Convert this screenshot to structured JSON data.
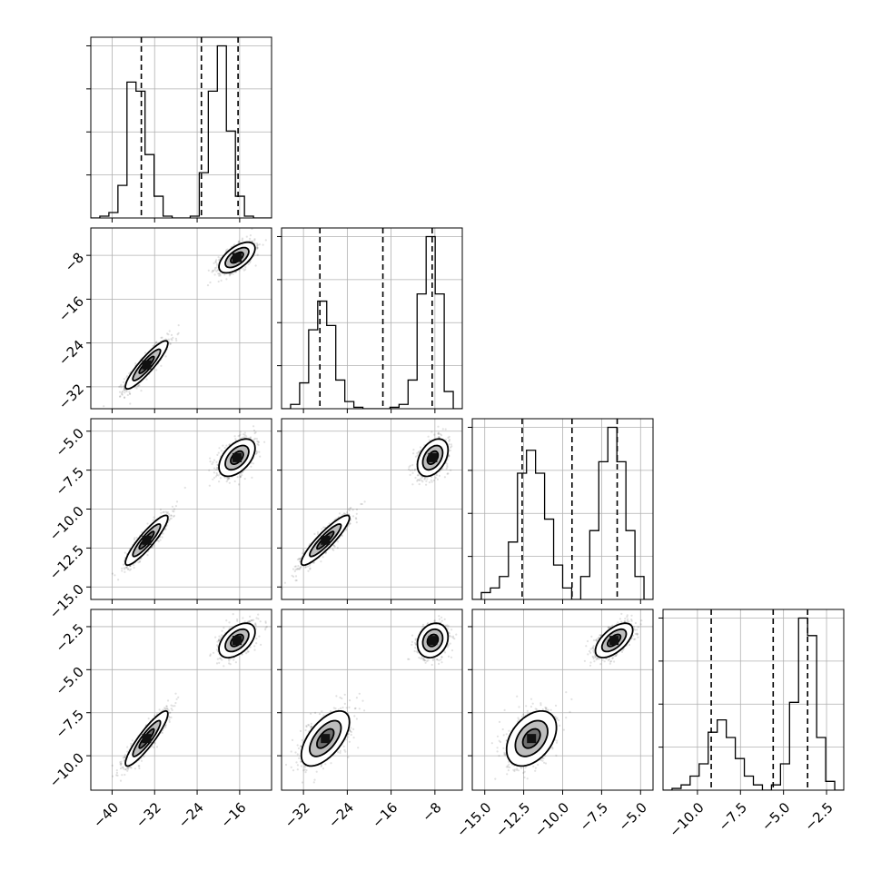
{
  "chart_data": {
    "type": "corner",
    "grid": true,
    "parameters": [
      {
        "range": [
          -44,
          -10
        ],
        "ticks": [
          -40,
          -32,
          -24,
          -16
        ],
        "tick_labels": [
          "−40",
          "−32",
          "−24",
          "−16"
        ],
        "quantiles": [
          -34.5,
          -23.2,
          -16.3
        ],
        "histogram": {
          "edges": [
            -44,
            -42.3,
            -40.6,
            -38.9,
            -37.2,
            -35.5,
            -33.8,
            -32.1,
            -30.4,
            -28.7,
            -27.0,
            -25.3,
            -23.6,
            -21.9,
            -20.2,
            -18.5,
            -16.8,
            -15.1,
            -13.4,
            -11.7,
            -10
          ],
          "counts": [
            0,
            1,
            3,
            18,
            75,
            70,
            35,
            12,
            1,
            0,
            0,
            1,
            25,
            70,
            95,
            48,
            12,
            1,
            0,
            0
          ]
        },
        "modes": [
          {
            "mean": -33.5,
            "sd": 2.0
          },
          {
            "mean": -16.5,
            "sd": 1.7
          }
        ]
      },
      {
        "range": [
          -36,
          -3
        ],
        "ticks": [
          -32,
          -24,
          -16,
          -8
        ],
        "tick_labels": [
          "−32",
          "−24",
          "−16",
          "−8"
        ],
        "quantiles": [
          -29.0,
          -17.5,
          -8.5
        ],
        "histogram": {
          "edges": [
            -36,
            -34.35,
            -32.7,
            -31.05,
            -29.4,
            -27.75,
            -26.1,
            -24.45,
            -22.8,
            -21.15,
            -19.5,
            -17.85,
            -16.2,
            -14.55,
            -12.9,
            -11.25,
            -9.6,
            -7.95,
            -6.3,
            -4.65,
            -3
          ],
          "counts": [
            0,
            3,
            18,
            55,
            75,
            58,
            20,
            5,
            1,
            0,
            0,
            0,
            1,
            3,
            20,
            80,
            120,
            80,
            12,
            0
          ]
        },
        "modes": [
          {
            "mean": -28.0,
            "sd": 2.2
          },
          {
            "mean": -8.4,
            "sd": 1.4
          }
        ]
      },
      {
        "range": [
          -15.8,
          -4.2
        ],
        "ticks": [
          -15.0,
          -12.5,
          -10.0,
          -7.5,
          -5.0
        ],
        "tick_labels": [
          "−15.0",
          "−12.5",
          "−10.0",
          "−7.5",
          "−5.0"
        ],
        "quantiles": [
          -12.6,
          -9.4,
          -6.5
        ],
        "histogram": {
          "edges": [
            -15.8,
            -15.22,
            -14.64,
            -14.06,
            -13.48,
            -12.9,
            -12.32,
            -11.74,
            -11.16,
            -10.58,
            -10.0,
            -9.42,
            -8.84,
            -8.26,
            -7.68,
            -7.1,
            -6.52,
            -5.94,
            -5.36,
            -4.78,
            -4.2
          ],
          "counts": [
            0,
            3,
            5,
            10,
            25,
            55,
            65,
            55,
            35,
            15,
            5,
            0,
            10,
            30,
            60,
            75,
            60,
            30,
            10,
            0
          ]
        },
        "modes": [
          {
            "mean": -12.0,
            "sd": 0.8
          },
          {
            "mean": -6.7,
            "sd": 0.6
          }
        ]
      },
      {
        "range": [
          -12,
          -1.5
        ],
        "ticks": [
          -10.0,
          -7.5,
          -5.0,
          -2.5
        ],
        "tick_labels": [
          "−10.0",
          "−7.5",
          "−5.0",
          "−2.5"
        ],
        "quantiles": [
          -9.2,
          -5.6,
          -3.6
        ],
        "histogram": {
          "edges": [
            -12,
            -11.475,
            -10.95,
            -10.425,
            -9.9,
            -9.375,
            -8.85,
            -8.325,
            -7.8,
            -7.275,
            -6.75,
            -6.225,
            -5.7,
            -5.175,
            -4.65,
            -4.125,
            -3.6,
            -3.075,
            -2.55,
            -2.025,
            -1.5
          ],
          "counts": [
            0,
            1,
            3,
            8,
            15,
            33,
            40,
            30,
            18,
            8,
            3,
            0,
            3,
            15,
            50,
            98,
            88,
            30,
            5,
            0
          ]
        },
        "modes": [
          {
            "mean": -9.0,
            "sd": 0.8
          },
          {
            "mean": -3.3,
            "sd": 0.5
          }
        ]
      }
    ],
    "pairs": [
      {
        "row": 1,
        "col": 0,
        "corr": [
          0.9,
          0.6
        ]
      },
      {
        "row": 2,
        "col": 0,
        "corr": [
          0.9,
          0.5
        ]
      },
      {
        "row": 2,
        "col": 1,
        "corr": [
          0.9,
          0.4
        ]
      },
      {
        "row": 3,
        "col": 0,
        "corr": [
          0.9,
          0.5
        ]
      },
      {
        "row": 3,
        "col": 1,
        "corr": [
          0.6,
          0.2
        ]
      },
      {
        "row": 3,
        "col": 2,
        "corr": [
          0.4,
          0.6
        ]
      }
    ],
    "colors": {
      "points": "#2b2b2b",
      "line": "#000000",
      "grid": "#b0b0b0"
    }
  }
}
